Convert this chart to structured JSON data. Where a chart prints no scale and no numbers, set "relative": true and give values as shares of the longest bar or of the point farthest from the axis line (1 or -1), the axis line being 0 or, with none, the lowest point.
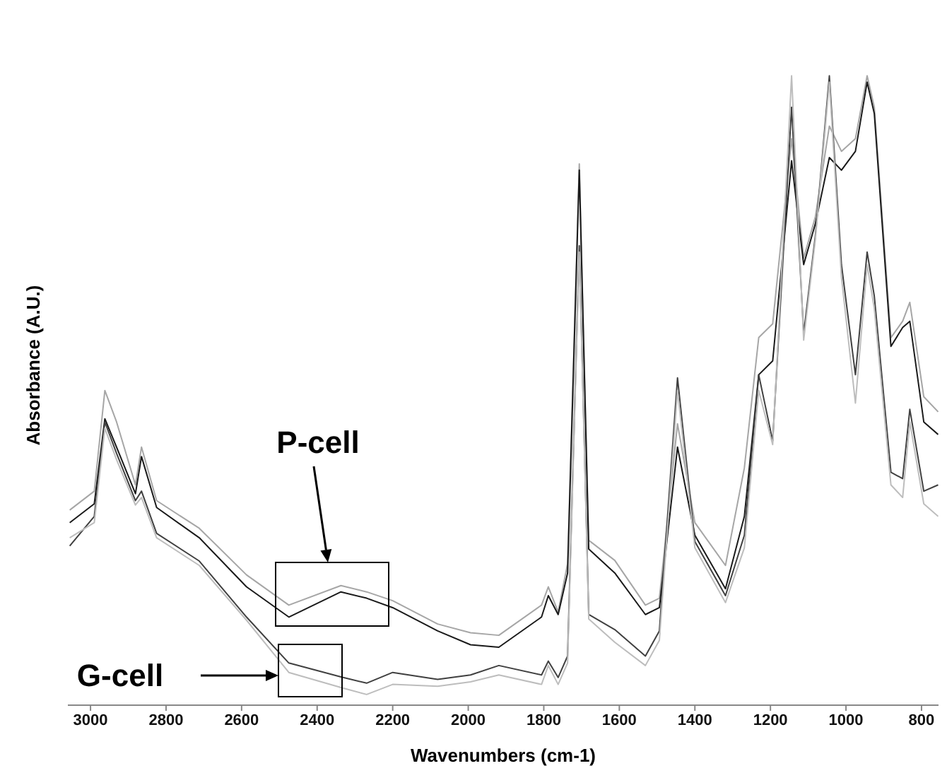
{
  "chart_data": {
    "type": "line",
    "relative": true,
    "xlabel": "Wavenumbers (cm-1)",
    "ylabel": "Absorbance (A.U.)",
    "xlim": [
      3060,
      755
    ],
    "xticks": [
      3000,
      2800,
      2600,
      2400,
      2200,
      2000,
      1800,
      1600,
      1400,
      1200,
      1000,
      800
    ],
    "marker": "none",
    "line_style": "solid",
    "x": [
      3055,
      2990,
      2962,
      2931,
      2881,
      2865,
      2825,
      2712,
      2587,
      2475,
      2337,
      2269,
      2200,
      2081,
      1994,
      1919,
      1806,
      1788,
      1762,
      1737,
      1706,
      1681,
      1612,
      1531,
      1494,
      1446,
      1400,
      1319,
      1269,
      1231,
      1194,
      1144,
      1112,
      1081,
      1044,
      1012,
      975,
      944,
      925,
      881,
      850,
      831,
      794,
      756
    ],
    "series": [
      {
        "color": "#a6a6a6",
        "values": [
          0.31,
          0.34,
          0.5,
          0.45,
          0.35,
          0.41,
          0.325,
          0.281,
          0.207,
          0.159,
          0.19,
          0.18,
          0.166,
          0.129,
          0.115,
          0.111,
          0.159,
          0.188,
          0.148,
          0.225,
          0.86,
          0.262,
          0.23,
          0.159,
          0.17,
          0.447,
          0.29,
          0.222,
          0.377,
          0.584,
          0.606,
          0.9,
          0.71,
          0.776,
          0.92,
          0.88,
          0.9,
          1.0,
          0.95,
          0.584,
          0.61,
          0.64,
          0.49,
          0.466
        ]
      },
      {
        "color": "#1a1a1a",
        "values": [
          0.29,
          0.32,
          0.455,
          0.41,
          0.336,
          0.395,
          0.314,
          0.266,
          0.188,
          0.14,
          0.18,
          0.17,
          0.155,
          0.118,
          0.096,
          0.092,
          0.14,
          0.174,
          0.144,
          0.21,
          0.85,
          0.248,
          0.21,
          0.144,
          0.155,
          0.41,
          0.27,
          0.185,
          0.3,
          0.525,
          0.547,
          0.865,
          0.7,
          0.765,
          0.87,
          0.85,
          0.88,
          0.99,
          0.94,
          0.57,
          0.6,
          0.61,
          0.45,
          0.43
        ]
      },
      {
        "color": "#404040",
        "values": [
          0.253,
          0.3,
          0.45,
          0.4,
          0.325,
          0.34,
          0.273,
          0.229,
          0.14,
          0.067,
          0.045,
          0.035,
          0.052,
          0.041,
          0.048,
          0.063,
          0.048,
          0.07,
          0.044,
          0.078,
          0.73,
          0.144,
          0.12,
          0.078,
          0.118,
          0.52,
          0.26,
          0.174,
          0.27,
          0.525,
          0.42,
          0.95,
          0.59,
          0.746,
          1.0,
          0.7,
          0.525,
          0.72,
          0.65,
          0.37,
          0.36,
          0.47,
          0.34,
          0.35
        ]
      },
      {
        "color": "#bdbdbd",
        "values": [
          0.266,
          0.29,
          0.44,
          0.39,
          0.318,
          0.33,
          0.266,
          0.222,
          0.135,
          0.052,
          0.028,
          0.017,
          0.033,
          0.03,
          0.037,
          0.048,
          0.033,
          0.063,
          0.033,
          0.067,
          0.72,
          0.137,
          0.1,
          0.063,
          0.103,
          0.5,
          0.25,
          0.163,
          0.25,
          0.5,
          0.414,
          1.0,
          0.58,
          0.74,
          0.99,
          0.68,
          0.48,
          0.7,
          0.63,
          0.35,
          0.33,
          0.45,
          0.32,
          0.3
        ]
      }
    ],
    "annotations": [
      "P-cell",
      "G-cell"
    ]
  }
}
